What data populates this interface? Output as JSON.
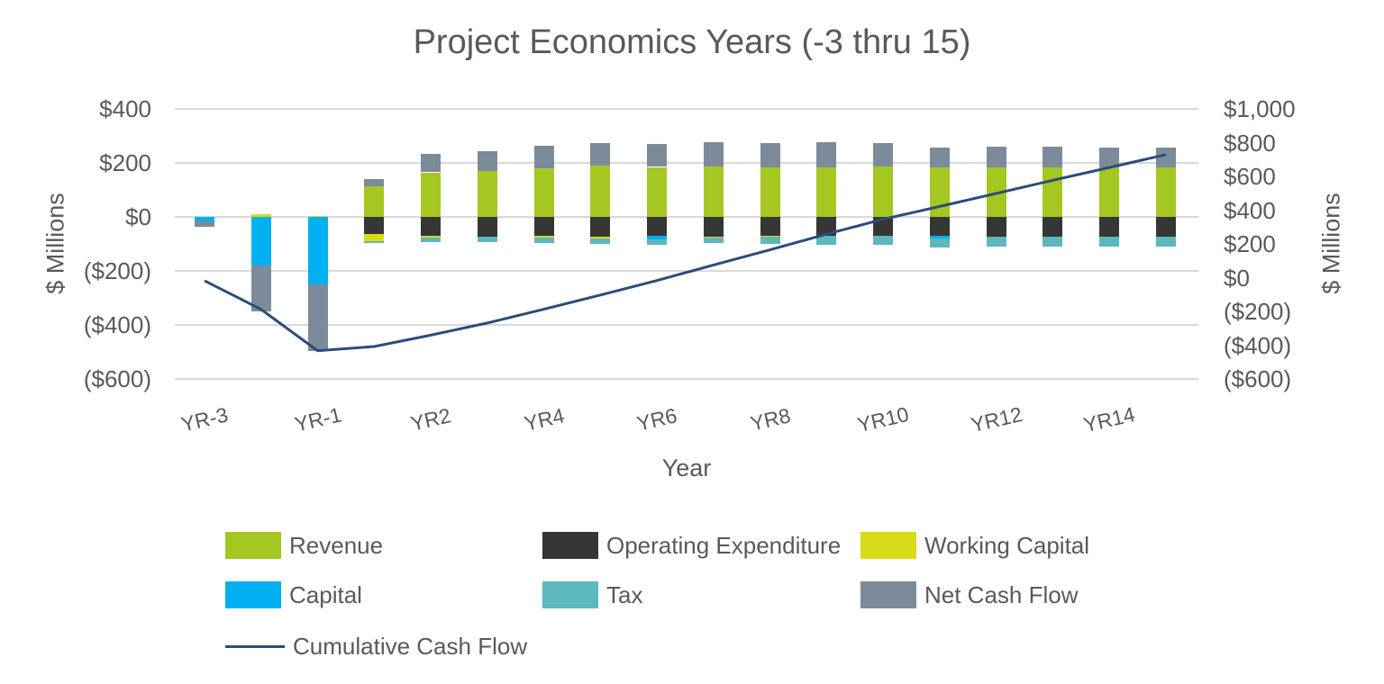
{
  "title": "Project Economics Years (-3 thru 15)",
  "axis_titles": {
    "left": "$ Millions",
    "right": "$ Millions",
    "x": "Year"
  },
  "style": {
    "background": "#FFFFFF",
    "text_color": "#595959",
    "gridline_color": "#D9D9D9"
  },
  "chart_data": {
    "type": "bar",
    "subtype": "stacked-bar-with-line-combo",
    "title": "Project Economics Years (-3 thru 15)",
    "xlabel": "Year",
    "ylabel_left": "$ Millions",
    "ylabel_right": "$ Millions",
    "grid": "horizontal-only",
    "categories": [
      "YR-3",
      "YR-2",
      "YR-1",
      "YR1",
      "YR2",
      "YR3",
      "YR4",
      "YR5",
      "YR6",
      "YR7",
      "YR8",
      "YR9",
      "YR10",
      "YR11",
      "YR12",
      "YR13",
      "YR14",
      "YR15"
    ],
    "left_axis": {
      "min": -600,
      "max": 400,
      "step": 200,
      "ticks": [
        {
          "label": "$400",
          "value": 400
        },
        {
          "label": "$200",
          "value": 200
        },
        {
          "label": "$0",
          "value": 0
        },
        {
          "label": "($200)",
          "value": -200
        },
        {
          "label": "($400)",
          "value": -400
        },
        {
          "label": "($600)",
          "value": -600
        }
      ]
    },
    "right_axis": {
      "min": -600,
      "max": 1000,
      "step": 200,
      "ticks": [
        {
          "label": "$1,000",
          "value": 1000
        },
        {
          "label": "$800",
          "value": 800
        },
        {
          "label": "$600",
          "value": 600
        },
        {
          "label": "$400",
          "value": 400
        },
        {
          "label": "$200",
          "value": 200
        },
        {
          "label": "$0",
          "value": 0
        },
        {
          "label": "($200)",
          "value": -200
        },
        {
          "label": "($400)",
          "value": -400
        },
        {
          "label": "($600)",
          "value": -600
        }
      ]
    },
    "x_axis": {
      "ticks": [
        {
          "index": 0,
          "label": "YR-3"
        },
        {
          "index": 2,
          "label": "YR-1"
        },
        {
          "index": 4,
          "label": "YR2"
        },
        {
          "index": 6,
          "label": "YR4"
        },
        {
          "index": 8,
          "label": "YR6"
        },
        {
          "index": 10,
          "label": "YR8"
        },
        {
          "index": 12,
          "label": "YR10"
        },
        {
          "index": 14,
          "label": "YR12"
        },
        {
          "index": 16,
          "label": "YR14"
        }
      ]
    },
    "series": [
      {
        "name": "Revenue",
        "color": "#A4C722",
        "values": [
          0,
          0,
          0,
          115,
          165,
          170,
          181,
          190,
          185,
          186,
          185,
          184,
          186,
          182,
          182,
          182,
          182,
          182
        ]
      },
      {
        "name": "Operating Expenditure",
        "color": "#363636",
        "values": [
          0,
          0,
          0,
          -63,
          -70,
          -72,
          -71,
          -73,
          -71,
          -73,
          -71,
          -70,
          -71,
          -71,
          -73,
          -73,
          -72,
          -72
        ]
      },
      {
        "name": "Working Capital",
        "color": "#D9DB16",
        "values": [
          0,
          10,
          5,
          -26,
          -7,
          -2,
          -6,
          -6,
          0,
          -2,
          -2,
          0,
          0,
          0,
          0,
          0,
          0,
          0
        ]
      },
      {
        "name": "Capital",
        "color": "#00B0F0",
        "values": [
          -18,
          -180,
          -250,
          0,
          0,
          0,
          0,
          0,
          -11,
          0,
          0,
          0,
          0,
          -9,
          0,
          0,
          0,
          0
        ]
      },
      {
        "name": "Tax",
        "color": "#5CB8BD",
        "values": [
          0,
          0,
          0,
          -8,
          -15,
          -20,
          -20,
          -21,
          -23,
          -22,
          -27,
          -33,
          -32,
          -32,
          -38,
          -36,
          -38,
          -38
        ]
      },
      {
        "name": "Net Cash Flow",
        "color": "#7C8B99",
        "values": [
          -18,
          -170,
          -245,
          25,
          67,
          72,
          82,
          84,
          86,
          92,
          90,
          93,
          88,
          76,
          77,
          78,
          76,
          76
        ]
      }
    ],
    "line_series": {
      "name": "Cumulative Cash Flow",
      "color": "#2A4C7C",
      "axis": "right",
      "values": [
        -18,
        -188,
        -433,
        -408,
        -341,
        -269,
        -187,
        -103,
        -17,
        75,
        165,
        258,
        346,
        422,
        499,
        577,
        653,
        729
      ]
    },
    "legend_position": "bottom"
  }
}
